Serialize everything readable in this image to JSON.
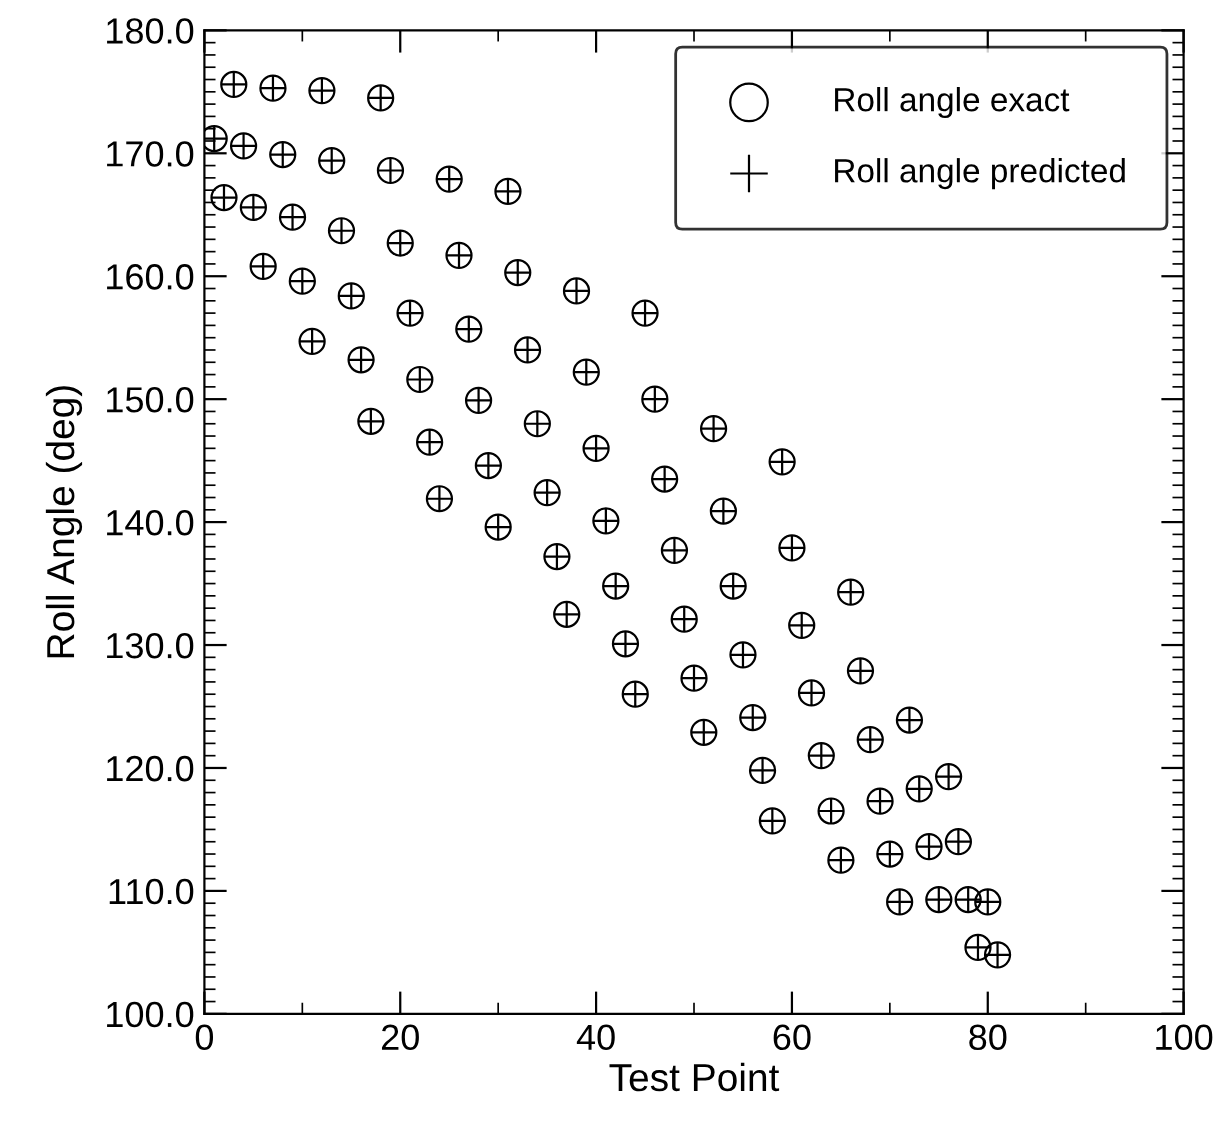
{
  "chart_data": {
    "type": "scatter",
    "xlabel": "Test Point",
    "ylabel": "Roll Angle (deg)",
    "x": [
      1,
      2,
      3,
      4,
      5,
      6,
      7,
      8,
      9,
      10,
      11,
      12,
      13,
      14,
      15,
      16,
      17,
      18,
      19,
      20,
      21,
      22,
      23,
      24,
      25,
      26,
      27,
      28,
      29,
      30,
      31,
      32,
      33,
      34,
      35,
      36,
      37,
      38,
      39,
      40,
      41,
      42,
      43,
      44,
      45,
      46,
      47,
      48,
      49,
      50,
      51,
      52,
      53,
      54,
      55,
      56,
      57,
      58,
      59,
      60,
      61,
      62,
      63,
      64,
      65,
      66,
      67,
      68,
      69,
      70,
      71,
      72,
      73,
      74,
      75,
      76,
      77,
      78,
      79,
      80,
      81
    ],
    "series": [
      {
        "name": "Roll angle exact",
        "color": "#000000",
        "marker": "circle",
        "values": [
          171.2,
          166.4,
          175.6,
          170.6,
          165.6,
          160.8,
          175.3,
          169.9,
          164.8,
          159.6,
          154.7,
          175.1,
          169.4,
          163.7,
          158.4,
          153.2,
          148.2,
          174.5,
          168.6,
          162.7,
          157.0,
          151.6,
          146.5,
          141.9,
          167.9,
          161.7,
          155.7,
          149.9,
          144.6,
          139.6,
          166.9,
          160.3,
          154.0,
          148.0,
          142.4,
          137.2,
          132.5,
          158.8,
          152.2,
          146.0,
          140.1,
          134.8,
          130.1,
          126.0,
          157.0,
          150.0,
          143.5,
          137.7,
          132.1,
          127.3,
          122.9,
          147.6,
          140.9,
          134.8,
          129.2,
          124.1,
          119.8,
          115.7,
          144.9,
          137.9,
          131.6,
          126.1,
          121.0,
          116.5,
          112.5,
          134.3,
          127.9,
          122.3,
          117.3,
          113.0,
          109.1,
          123.9,
          118.3,
          113.6,
          109.3,
          119.3,
          114.0,
          109.3,
          105.4,
          109.1,
          104.8
        ]
      },
      {
        "name": "Roll angle predicted",
        "color": "#000000",
        "marker": "cross",
        "values": [
          171.2,
          166.4,
          175.6,
          170.6,
          165.6,
          160.8,
          175.3,
          169.9,
          164.8,
          159.6,
          154.7,
          175.1,
          169.4,
          163.7,
          158.4,
          153.2,
          148.2,
          174.5,
          168.6,
          162.7,
          157.0,
          151.6,
          146.5,
          141.9,
          167.9,
          161.7,
          155.7,
          149.9,
          144.6,
          139.6,
          166.9,
          160.3,
          154.0,
          148.0,
          142.4,
          137.2,
          132.5,
          158.8,
          152.2,
          146.0,
          140.1,
          134.8,
          130.1,
          126.0,
          157.0,
          150.0,
          143.5,
          137.7,
          132.1,
          127.3,
          122.9,
          147.6,
          140.9,
          134.8,
          129.2,
          124.1,
          119.8,
          115.7,
          144.9,
          137.9,
          131.6,
          126.1,
          121.0,
          116.5,
          112.5,
          134.3,
          127.9,
          122.3,
          117.3,
          113.0,
          109.1,
          123.9,
          118.3,
          113.6,
          109.3,
          119.3,
          114.0,
          109.3,
          105.4,
          109.1,
          104.8
        ]
      }
    ],
    "xlim": [
      0,
      100
    ],
    "xticks": [
      0,
      20,
      40,
      60,
      80,
      100
    ],
    "ylim": [
      100,
      180
    ],
    "yticks": [
      {
        "value": 100,
        "label": "100.0"
      },
      {
        "value": 110,
        "label": "110.0"
      },
      {
        "value": 120,
        "label": "120.0"
      },
      {
        "value": 130,
        "label": "130.0"
      },
      {
        "value": 140,
        "label": "140.0"
      },
      {
        "value": 150,
        "label": "150.0"
      },
      {
        "value": 160,
        "label": "160.0"
      },
      {
        "value": 170,
        "label": "170.0"
      },
      {
        "value": 180,
        "label": "180.0"
      }
    ],
    "grid": false,
    "legend": "top right"
  }
}
